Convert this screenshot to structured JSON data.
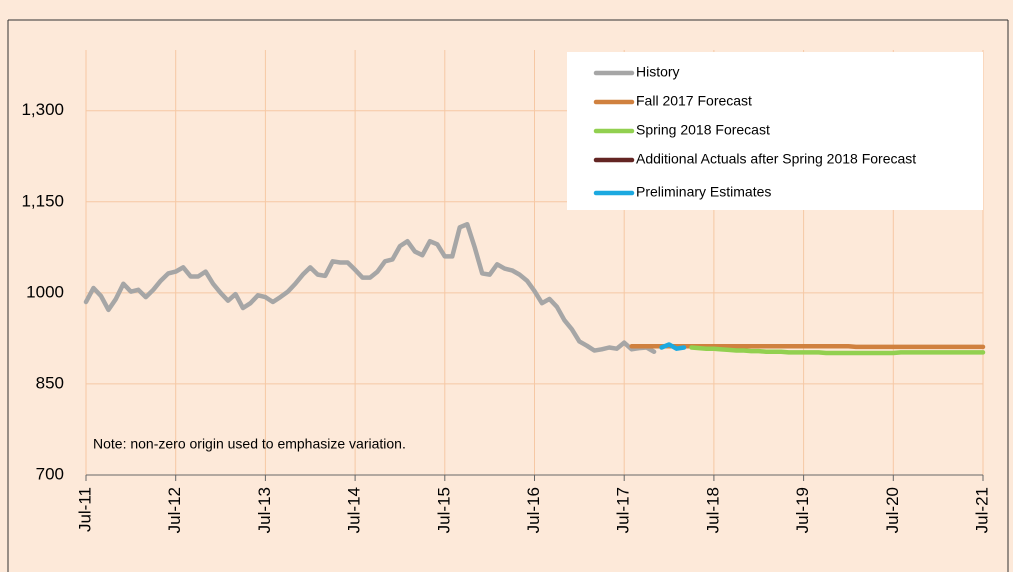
{
  "chart_data": {
    "type": "line",
    "annotation": "Note: non-zero origin used to emphasize variation.",
    "categories": [
      "Jul-11",
      null,
      null,
      null,
      null,
      null,
      null,
      null,
      null,
      null,
      null,
      null,
      "Jul-12",
      null,
      null,
      null,
      null,
      null,
      null,
      null,
      null,
      null,
      null,
      null,
      "Jul-13",
      null,
      null,
      null,
      null,
      null,
      null,
      null,
      null,
      null,
      null,
      null,
      "Jul-14",
      null,
      null,
      null,
      null,
      null,
      null,
      null,
      null,
      null,
      null,
      null,
      "Jul-15",
      null,
      null,
      null,
      null,
      null,
      null,
      null,
      null,
      null,
      null,
      null,
      "Jul-16",
      null,
      null,
      null,
      null,
      null,
      null,
      null,
      null,
      null,
      null,
      null,
      "Jul-17",
      null,
      null,
      null,
      null,
      null,
      null,
      null,
      null,
      null,
      null,
      null,
      "Jul-18",
      null,
      null,
      null,
      null,
      null,
      null,
      null,
      null,
      null,
      null,
      null,
      "Jul-19",
      null,
      null,
      null,
      null,
      null,
      null,
      null,
      null,
      null,
      null,
      null,
      "Jul-20",
      null,
      null,
      null,
      null,
      null,
      null,
      null,
      null,
      null,
      null,
      null,
      "Jul-21"
    ],
    "ylim": [
      700,
      1400
    ],
    "yticks": [
      700,
      850,
      1000,
      {
        "value": 1150,
        "label": "1,150"
      },
      {
        "value": 1300,
        "label": "1,300"
      }
    ],
    "grid": true,
    "legend": "top-right",
    "series": [
      {
        "name": "History",
        "color": "#a6a6a6",
        "values": [
          985,
          1008,
          995,
          972,
          990,
          1015,
          1002,
          1005,
          993,
          1005,
          1020,
          1032,
          1035,
          1042,
          1027,
          1027,
          1035,
          1015,
          1000,
          987,
          998,
          975,
          983,
          996,
          993,
          985,
          993,
          1002,
          1015,
          1030,
          1042,
          1030,
          1028,
          1052,
          1050,
          1050,
          1038,
          1025,
          1025,
          1035,
          1052,
          1055,
          1077,
          1085,
          1068,
          1062,
          1085,
          1080,
          1060,
          1060,
          1108,
          1113,
          1075,
          1032,
          1030,
          1047,
          1040,
          1037,
          1030,
          1020,
          1003,
          983,
          990,
          977,
          955,
          940,
          920,
          913,
          905,
          907,
          910,
          908,
          918,
          907,
          909,
          910,
          903,
          null,
          null,
          null,
          null,
          null,
          null,
          null,
          null,
          null,
          null,
          null,
          null,
          null,
          null,
          null,
          null,
          null,
          null,
          null,
          null,
          null,
          null,
          null,
          null,
          null,
          null,
          null,
          null,
          null,
          null,
          null,
          null,
          null,
          null,
          null,
          null,
          null,
          null,
          null,
          null,
          null,
          null,
          null,
          null
        ]
      },
      {
        "name": "Fall 2017 Forecast",
        "color": "#d0813f",
        "values": [
          null,
          null,
          null,
          null,
          null,
          null,
          null,
          null,
          null,
          null,
          null,
          null,
          null,
          null,
          null,
          null,
          null,
          null,
          null,
          null,
          null,
          null,
          null,
          null,
          null,
          null,
          null,
          null,
          null,
          null,
          null,
          null,
          null,
          null,
          null,
          null,
          null,
          null,
          null,
          null,
          null,
          null,
          null,
          null,
          null,
          null,
          null,
          null,
          null,
          null,
          null,
          null,
          null,
          null,
          null,
          null,
          null,
          null,
          null,
          null,
          null,
          null,
          null,
          null,
          null,
          null,
          null,
          null,
          null,
          null,
          null,
          null,
          null,
          912,
          912,
          912,
          912,
          912,
          912,
          912,
          912,
          912,
          912,
          912,
          912,
          912,
          912,
          912,
          912,
          912,
          912,
          912,
          912,
          912,
          912,
          912,
          912,
          912,
          912,
          912,
          912,
          912,
          912,
          911,
          911,
          911,
          911,
          911,
          911,
          911,
          911,
          911,
          911,
          911,
          911,
          911,
          911,
          911,
          911,
          911,
          911
        ]
      },
      {
        "name": "Spring 2018 Forecast",
        "color": "#92d050",
        "values": [
          null,
          null,
          null,
          null,
          null,
          null,
          null,
          null,
          null,
          null,
          null,
          null,
          null,
          null,
          null,
          null,
          null,
          null,
          null,
          null,
          null,
          null,
          null,
          null,
          null,
          null,
          null,
          null,
          null,
          null,
          null,
          null,
          null,
          null,
          null,
          null,
          null,
          null,
          null,
          null,
          null,
          null,
          null,
          null,
          null,
          null,
          null,
          null,
          null,
          null,
          null,
          null,
          null,
          null,
          null,
          null,
          null,
          null,
          null,
          null,
          null,
          null,
          null,
          null,
          null,
          null,
          null,
          null,
          null,
          null,
          null,
          null,
          null,
          null,
          null,
          null,
          null,
          null,
          null,
          null,
          null,
          910,
          909,
          908,
          908,
          907,
          906,
          905,
          905,
          904,
          904,
          903,
          903,
          903,
          902,
          902,
          902,
          902,
          902,
          901,
          901,
          901,
          901,
          901,
          901,
          901,
          901,
          901,
          901,
          902,
          902,
          902,
          902,
          902,
          902,
          902,
          902,
          902,
          902,
          902,
          902
        ]
      },
      {
        "name": "Additional Actuals after Spring 2018 Forecast",
        "color": "#632523"
      },
      {
        "name": "Preliminary Estimates",
        "color": "#1ca9e0",
        "values": [
          null,
          null,
          null,
          null,
          null,
          null,
          null,
          null,
          null,
          null,
          null,
          null,
          null,
          null,
          null,
          null,
          null,
          null,
          null,
          null,
          null,
          null,
          null,
          null,
          null,
          null,
          null,
          null,
          null,
          null,
          null,
          null,
          null,
          null,
          null,
          null,
          null,
          null,
          null,
          null,
          null,
          null,
          null,
          null,
          null,
          null,
          null,
          null,
          null,
          null,
          null,
          null,
          null,
          null,
          null,
          null,
          null,
          null,
          null,
          null,
          null,
          null,
          null,
          null,
          null,
          null,
          null,
          null,
          null,
          null,
          null,
          null,
          null,
          null,
          null,
          null,
          null,
          910,
          915,
          908,
          910,
          null,
          null,
          null,
          null,
          null,
          null,
          null,
          null,
          null,
          null,
          null,
          null,
          null,
          null,
          null,
          null,
          null,
          null,
          null,
          null,
          null,
          null,
          null,
          null,
          null,
          null,
          null,
          null,
          null,
          null,
          null,
          null,
          null,
          null,
          null,
          null,
          null,
          null,
          null,
          null
        ]
      }
    ]
  }
}
